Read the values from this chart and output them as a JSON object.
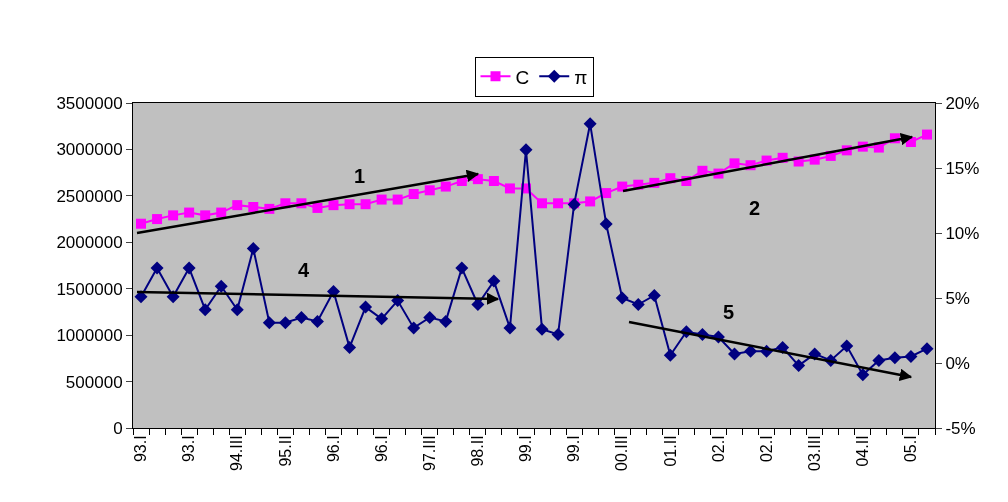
{
  "chart_data": {
    "type": "line",
    "categories": [
      "93.I",
      null,
      null,
      "93.I",
      null,
      null,
      "94.III",
      null,
      null,
      "95.II",
      null,
      null,
      "96.I",
      null,
      null,
      "96.I",
      null,
      null,
      "97.III",
      null,
      null,
      "98.II",
      null,
      null,
      "99.I",
      null,
      null,
      "99.I",
      null,
      null,
      "00.III",
      null,
      null,
      "01.II",
      null,
      null,
      "02.I",
      null,
      null,
      "02.I",
      null,
      null,
      "03.III",
      null,
      null,
      "04.II",
      null,
      null,
      "05.I",
      null
    ],
    "ylim": [
      0,
      3500000
    ],
    "yticks": [
      0,
      500000,
      1000000,
      1500000,
      2000000,
      2500000,
      3000000,
      3500000
    ],
    "y2lim": [
      -5,
      20
    ],
    "y2ticks": [
      {
        "value": -5,
        "label": "-5%"
      },
      {
        "value": 0,
        "label": "0%"
      },
      {
        "value": 5,
        "label": "5%"
      },
      {
        "value": 10,
        "label": "10%"
      },
      {
        "value": 15,
        "label": "15%"
      },
      {
        "value": 20,
        "label": "20%"
      }
    ],
    "legend": "top",
    "line_style": "solid",
    "series": [
      {
        "name": "C",
        "color": "#ff00ff",
        "marker": "square",
        "values": [
          2200000,
          2250000,
          2290000,
          2320000,
          2290000,
          2320000,
          2400000,
          2380000,
          2360000,
          2420000,
          2420000,
          2370000,
          2400000,
          2410000,
          2410000,
          2460000,
          2460000,
          2520000,
          2560000,
          2600000,
          2660000,
          2680000,
          2660000,
          2580000,
          2580000,
          2420000,
          2420000,
          2420000,
          2440000,
          2530000,
          2600000,
          2620000,
          2640000,
          2690000,
          2660000,
          2770000,
          2740000,
          2850000,
          2830000,
          2880000,
          2910000,
          2870000,
          2890000,
          2930000,
          2990000,
          3030000,
          3020000,
          3120000,
          3080000,
          3160000
        ]
      },
      {
        "name": "π",
        "color": "#000080",
        "marker": "diamond",
        "axis": "y2",
        "values": [
          5.1,
          7.3,
          5.1,
          7.3,
          4.1,
          5.9,
          4.1,
          8.8,
          3.1,
          3.1,
          3.5,
          3.2,
          5.5,
          1.2,
          4.3,
          3.4,
          4.8,
          2.7,
          3.5,
          3.2,
          7.3,
          4.5,
          6.3,
          2.7,
          16.4,
          2.6,
          2.2,
          12.2,
          18.4,
          10.7,
          5.0,
          4.5,
          5.2,
          0.6,
          2.4,
          2.2,
          2.0,
          0.7,
          0.9,
          0.9,
          1.2,
          -0.2,
          0.7,
          0.2,
          1.3,
          -0.9,
          0.2,
          0.4,
          0.5,
          1.1
        ]
      }
    ],
    "annotations": [
      "1",
      "2",
      "4",
      "5"
    ]
  }
}
